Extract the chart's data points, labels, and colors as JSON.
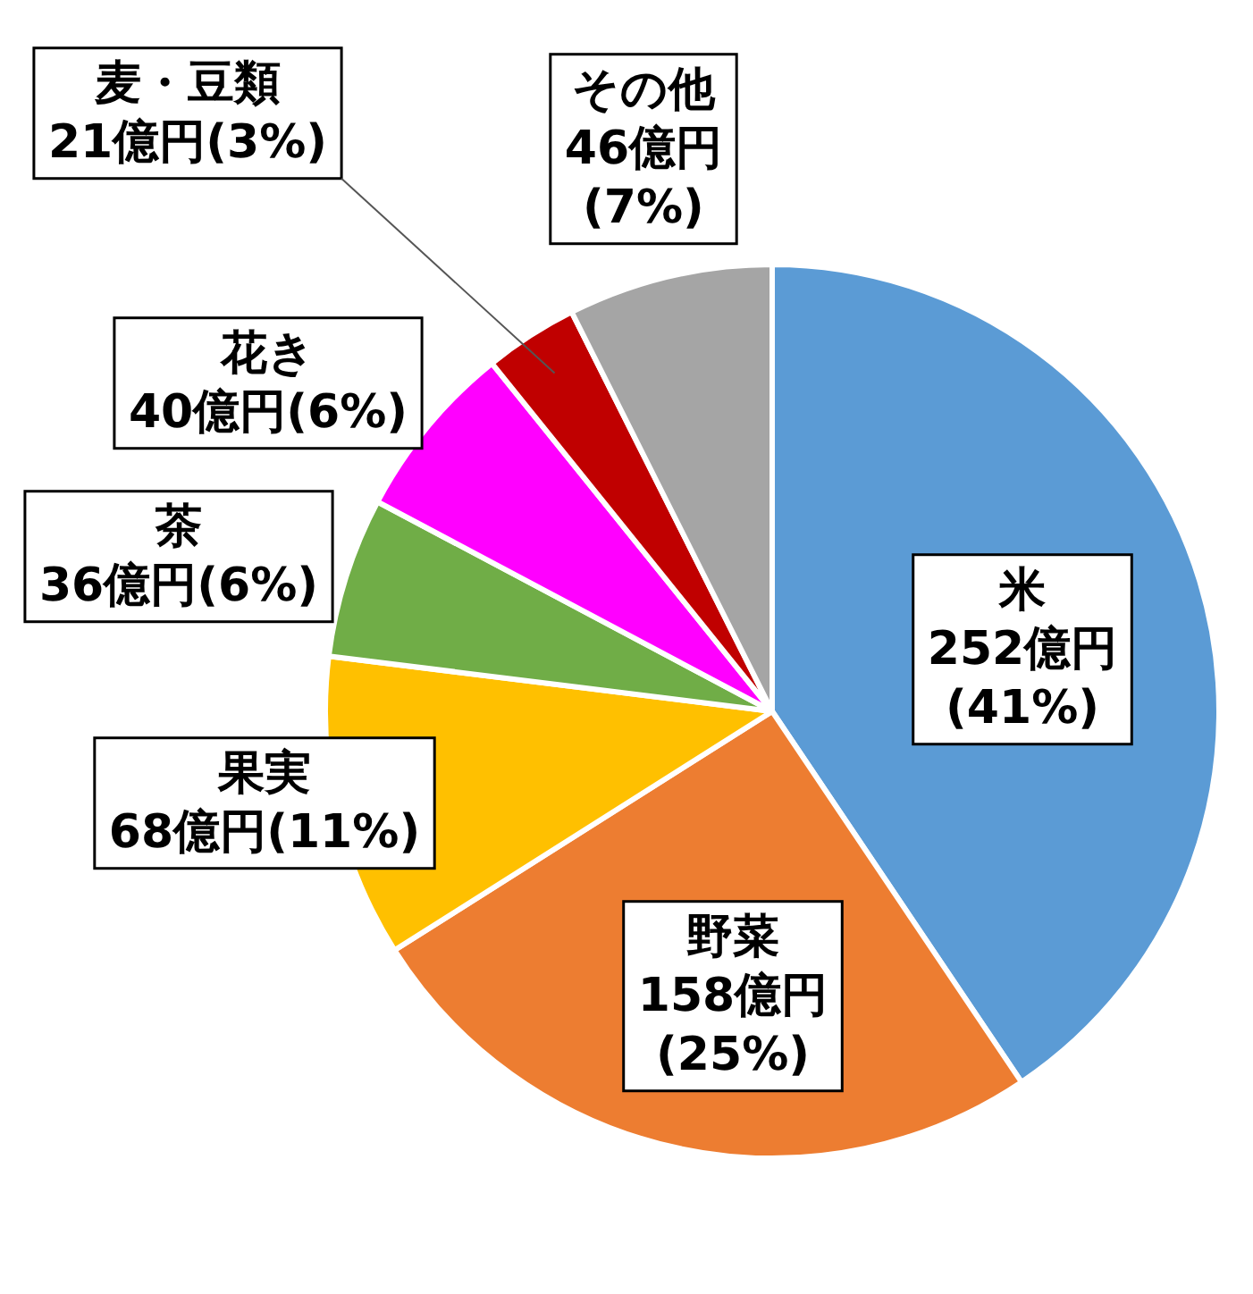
{
  "chart_data": {
    "type": "pie",
    "categories": [
      "米",
      "野菜",
      "果実",
      "茶",
      "花き",
      "麦・豆類",
      "その他"
    ],
    "values": [
      252,
      158,
      68,
      36,
      40,
      21,
      46
    ],
    "colors": [
      "#5b9bd5",
      "#ed7d31",
      "#ffc000",
      "#70ad47",
      "#ff00ff",
      "#c00000",
      "#a5a5a5"
    ],
    "value_labels": [
      "252億円\n(41%)",
      "158億円\n(25%)",
      "68億円(11%)",
      "36億円(6%)",
      "40億円(6%)",
      "21億円(3%)",
      "46億円\n(7%)"
    ]
  }
}
